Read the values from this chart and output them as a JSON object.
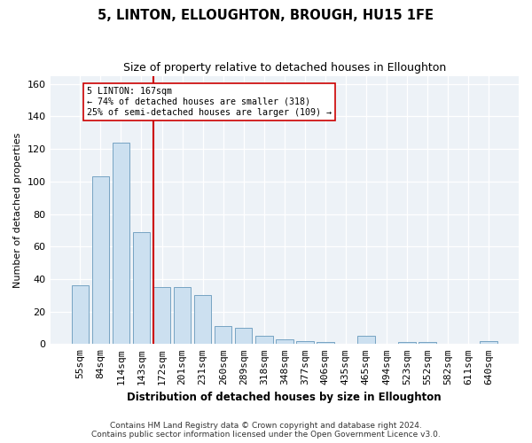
{
  "title": "5, LINTON, ELLOUGHTON, BROUGH, HU15 1FE",
  "subtitle": "Size of property relative to detached houses in Elloughton",
  "xlabel": "Distribution of detached houses by size in Elloughton",
  "ylabel": "Number of detached properties",
  "categories": [
    "55sqm",
    "84sqm",
    "114sqm",
    "143sqm",
    "172sqm",
    "201sqm",
    "231sqm",
    "260sqm",
    "289sqm",
    "318sqm",
    "348sqm",
    "377sqm",
    "406sqm",
    "435sqm",
    "465sqm",
    "494sqm",
    "523sqm",
    "552sqm",
    "582sqm",
    "611sqm",
    "640sqm"
  ],
  "values": [
    36,
    103,
    124,
    69,
    35,
    35,
    30,
    11,
    10,
    5,
    3,
    2,
    1,
    0,
    5,
    0,
    1,
    1,
    0,
    0,
    2
  ],
  "bar_color": "#cce0f0",
  "bar_edge_color": "#6699bb",
  "vline_index": 4,
  "vline_color": "#cc0000",
  "annotation_line1": "5 LINTON: 167sqm",
  "annotation_line2": "← 74% of detached houses are smaller (318)",
  "annotation_line3": "25% of semi-detached houses are larger (109) →",
  "annotation_box_facecolor": "#ffffff",
  "annotation_box_edgecolor": "#cc0000",
  "ylim": [
    0,
    165
  ],
  "yticks": [
    0,
    20,
    40,
    60,
    80,
    100,
    120,
    140,
    160
  ],
  "bg_color": "#edf2f7",
  "footer_line1": "Contains HM Land Registry data © Crown copyright and database right 2024.",
  "footer_line2": "Contains public sector information licensed under the Open Government Licence v3.0."
}
